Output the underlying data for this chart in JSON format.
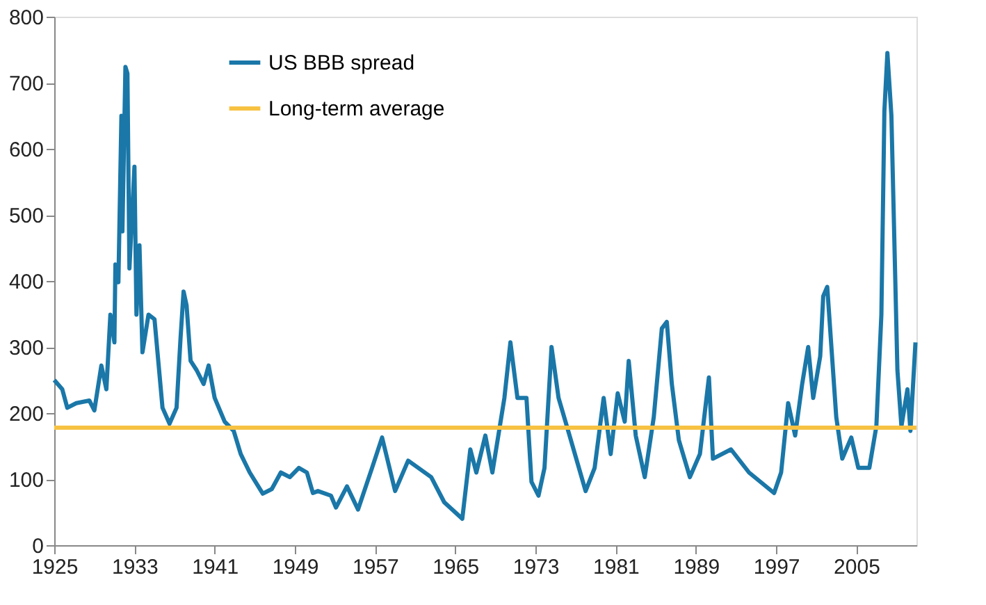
{
  "chart_data": {
    "type": "line",
    "series": [
      {
        "name": "US BBB spread",
        "color": "#1a77a8",
        "x": [
          1925,
          1925.8,
          1926.3,
          1927.2,
          1928.5,
          1929,
          1929.7,
          1930.2,
          1930.6,
          1931,
          1931.1,
          1931.4,
          1931.7,
          1931.8,
          1932.1,
          1932.3,
          1932.5,
          1933,
          1933.2,
          1933.5,
          1933.8,
          1934.4,
          1935,
          1935.8,
          1936.5,
          1937.2,
          1937.6,
          1937.9,
          1938.2,
          1938.6,
          1939.2,
          1939.9,
          1940.4,
          1941,
          1942,
          1942.9,
          1943.6,
          1944.5,
          1945.8,
          1946.7,
          1947.6,
          1948.5,
          1949.4,
          1950.2,
          1950.8,
          1951.3,
          1952.6,
          1953.1,
          1954.2,
          1955.3,
          1956.7,
          1957.7,
          1959,
          1960.3,
          1962.6,
          1963.9,
          1965.7,
          1966.5,
          1967.1,
          1968,
          1968.7,
          1969.9,
          1970.5,
          1971.2,
          1972.1,
          1972.6,
          1973.3,
          1973.9,
          1974.6,
          1975.3,
          1976.4,
          1978,
          1978.9,
          1979.8,
          1980.5,
          1981.2,
          1981.9,
          1982.3,
          1983,
          1983.9,
          1984.8,
          1985.6,
          1986.1,
          1986.6,
          1987.3,
          1988.4,
          1989.4,
          1990.3,
          1990.7,
          1992.5,
          1994.3,
          1996.8,
          1997.5,
          1998.2,
          1998.9,
          1999.6,
          2000.2,
          2000.7,
          2001.4,
          2001.7,
          2002.1,
          2003,
          2003.6,
          2004.5,
          2005.2,
          2006.3,
          2007,
          2007.5,
          2007.8,
          2008.1,
          2008.5,
          2009.1,
          2009.5,
          2010.1,
          2010.4,
          2010.9
        ],
        "values": [
          250,
          236,
          208,
          215,
          219,
          204,
          272,
          236,
          349,
          307,
          425,
          398,
          650,
          475,
          724,
          714,
          419,
          573,
          349,
          454,
          292,
          349,
          342,
          208,
          184,
          208,
          314,
          384,
          363,
          279,
          265,
          244,
          272,
          223,
          187,
          173,
          138,
          110,
          78,
          85,
          110,
          103,
          117,
          110,
          79,
          82,
          75,
          57,
          89,
          54,
          117,
          163,
          82,
          128,
          103,
          65,
          40,
          145,
          110,
          166,
          110,
          223,
          307,
          223,
          223,
          96,
          75,
          117,
          300,
          223,
          166,
          82,
          117,
          223,
          138,
          230,
          187,
          279,
          166,
          103,
          194,
          328,
          338,
          244,
          159,
          103,
          138,
          254,
          131,
          145,
          110,
          79,
          110,
          215,
          166,
          244,
          300,
          223,
          286,
          377,
          391,
          194,
          131,
          163,
          117,
          117,
          180,
          349,
          657,
          745,
          650,
          265,
          180,
          236,
          173,
          307
        ]
      }
    ],
    "ref_lines": [
      {
        "axis": "y",
        "value": 178,
        "label": "Long-term average",
        "color": "#f7c242"
      }
    ],
    "xlim": [
      1925,
      2011
    ],
    "xticks": [
      1925,
      1933,
      1941,
      1949,
      1957,
      1965,
      1973,
      1981,
      1989,
      1997,
      2005
    ],
    "ylim": [
      0,
      800
    ],
    "yticks": [
      0,
      100,
      200,
      300,
      400,
      500,
      600,
      700,
      800
    ],
    "grid": false,
    "legend": "top left"
  }
}
